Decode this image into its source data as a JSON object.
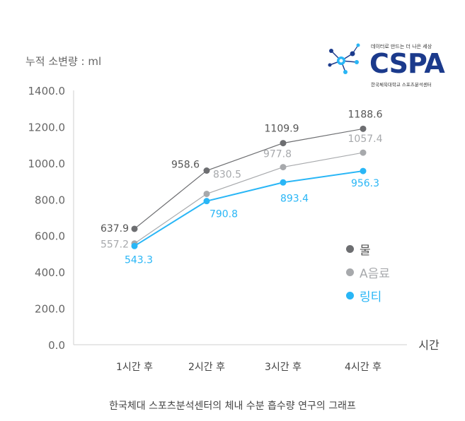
{
  "unit_label": "누적 소변량 : ml",
  "x_axis_label": "시간",
  "caption": "한국체대 스포츠분석센터의 체내 수분 흡수량 연구의 그래프",
  "logo": {
    "tagline": "데이터로 만드는 더 나은 세상",
    "wordmark": "CSPA",
    "subtitle": "한국체육대학교 스포츠분석센터"
  },
  "chart_data": {
    "type": "line",
    "categories": [
      "1시간 후",
      "2시간 후",
      "3시간 후",
      "4시간 후"
    ],
    "ylim": [
      0,
      1400
    ],
    "yticks": [
      "0.0",
      "200.0",
      "400.0",
      "600.0",
      "800.0",
      "1000.0",
      "1200.0",
      "1400.0"
    ],
    "series": [
      {
        "name": "물",
        "color": "#6d6e71",
        "values": [
          637.9,
          958.6,
          1109.9,
          1188.6
        ],
        "labels": [
          "637.9",
          "958.6",
          "1109.9",
          "1188.6"
        ]
      },
      {
        "name": "A음료",
        "color": "#a7a9ac",
        "values": [
          557.2,
          830.5,
          977.8,
          1057.4
        ],
        "labels": [
          "557.2",
          "830.5",
          "977.8",
          "1057.4"
        ]
      },
      {
        "name": "링티",
        "color": "#29b6f6",
        "values": [
          543.3,
          790.8,
          893.4,
          956.3
        ],
        "labels": [
          "543.3",
          "790.8",
          "893.4",
          "956.3"
        ]
      }
    ]
  }
}
